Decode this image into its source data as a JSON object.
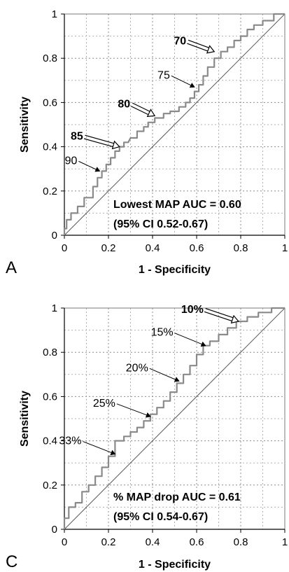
{
  "chart_data": [
    {
      "type": "line",
      "panel_label": "A",
      "xlabel": "1 - Specificity",
      "ylabel": "Sensitivity",
      "xlim": [
        0,
        1
      ],
      "ylim": [
        0,
        1
      ],
      "grid": true,
      "x_ticks": [
        "0",
        "0.2",
        "0.4",
        "0.6",
        "0.8",
        "1"
      ],
      "y_ticks": [
        "0",
        "0.2",
        "0.4",
        "0.6",
        "0.8",
        "1"
      ],
      "auc_text": [
        "Lowest MAP AUC = 0.60",
        "(95% CI 0.52-0.67)"
      ],
      "series": [
        {
          "x": [
            0,
            0,
            0.01,
            0.01,
            0.03,
            0.03,
            0.06,
            0.06,
            0.09,
            0.09,
            0.13,
            0.13,
            0.15,
            0.15,
            0.17,
            0.17,
            0.19,
            0.19,
            0.21,
            0.21,
            0.23,
            0.23,
            0.25,
            0.25,
            0.27,
            0.27,
            0.29,
            0.3,
            0.33,
            0.33,
            0.36,
            0.36,
            0.38,
            0.38,
            0.41,
            0.41,
            0.45,
            0.45,
            0.48,
            0.48,
            0.52,
            0.52,
            0.55,
            0.55,
            0.57,
            0.57,
            0.59,
            0.59,
            0.61,
            0.61,
            0.63,
            0.63,
            0.65,
            0.65,
            0.68,
            0.68,
            0.71,
            0.71,
            0.74,
            0.74,
            0.77,
            0.77,
            0.8,
            0.8,
            0.83,
            0.83,
            0.86,
            0.86,
            0.9,
            0.9,
            0.95,
            0.95,
            1.0
          ],
          "y": [
            0,
            0.03,
            0.03,
            0.07,
            0.07,
            0.1,
            0.1,
            0.13,
            0.13,
            0.17,
            0.17,
            0.22,
            0.22,
            0.26,
            0.26,
            0.29,
            0.29,
            0.32,
            0.32,
            0.35,
            0.35,
            0.38,
            0.38,
            0.4,
            0.4,
            0.42,
            0.42,
            0.44,
            0.44,
            0.47,
            0.47,
            0.49,
            0.49,
            0.51,
            0.51,
            0.53,
            0.53,
            0.55,
            0.55,
            0.56,
            0.56,
            0.58,
            0.58,
            0.6,
            0.6,
            0.62,
            0.62,
            0.65,
            0.65,
            0.68,
            0.68,
            0.72,
            0.72,
            0.76,
            0.76,
            0.8,
            0.8,
            0.83,
            0.83,
            0.85,
            0.85,
            0.88,
            0.88,
            0.9,
            0.9,
            0.93,
            0.93,
            0.95,
            0.95,
            0.97,
            0.97,
            1.0,
            1.0
          ]
        }
      ],
      "annotations": [
        {
          "text": "70",
          "x": 0.68,
          "y": 0.83,
          "bold": true
        },
        {
          "text": "75",
          "x": 0.59,
          "y": 0.67,
          "bold": false
        },
        {
          "text": "80",
          "x": 0.41,
          "y": 0.54,
          "bold": true
        },
        {
          "text": "85",
          "x": 0.25,
          "y": 0.4,
          "bold": true
        },
        {
          "text": "90",
          "x": 0.16,
          "y": 0.29,
          "bold": false
        }
      ]
    },
    {
      "type": "line",
      "panel_label": "C",
      "xlabel": "1 - Specificity",
      "ylabel": "Sensitivity",
      "xlim": [
        0,
        1
      ],
      "ylim": [
        0,
        1
      ],
      "grid": true,
      "x_ticks": [
        "0",
        "0.2",
        "0.4",
        "0.6",
        "0.8",
        "1"
      ],
      "y_ticks": [
        "0",
        "0.2",
        "0.4",
        "0.6",
        "0.8",
        "1"
      ],
      "auc_text": [
        "% MAP drop AUC = 0.61",
        "(95% CI 0.54-0.67)"
      ],
      "series": [
        {
          "x": [
            0,
            0,
            0.02,
            0.02,
            0.05,
            0.05,
            0.08,
            0.08,
            0.11,
            0.11,
            0.14,
            0.14,
            0.17,
            0.17,
            0.2,
            0.2,
            0.23,
            0.23,
            0.27,
            0.27,
            0.3,
            0.3,
            0.33,
            0.33,
            0.36,
            0.36,
            0.39,
            0.39,
            0.42,
            0.42,
            0.45,
            0.45,
            0.48,
            0.48,
            0.51,
            0.51,
            0.54,
            0.54,
            0.57,
            0.57,
            0.6,
            0.6,
            0.63,
            0.63,
            0.66,
            0.66,
            0.7,
            0.7,
            0.74,
            0.74,
            0.78,
            0.78,
            0.83,
            0.83,
            0.88,
            0.88,
            0.94,
            0.94,
            1.0
          ],
          "y": [
            0,
            0.05,
            0.05,
            0.1,
            0.1,
            0.12,
            0.12,
            0.17,
            0.17,
            0.2,
            0.2,
            0.24,
            0.24,
            0.28,
            0.28,
            0.33,
            0.33,
            0.4,
            0.4,
            0.42,
            0.42,
            0.44,
            0.44,
            0.46,
            0.46,
            0.49,
            0.49,
            0.52,
            0.52,
            0.55,
            0.55,
            0.58,
            0.58,
            0.62,
            0.62,
            0.66,
            0.66,
            0.7,
            0.7,
            0.74,
            0.74,
            0.79,
            0.79,
            0.83,
            0.83,
            0.85,
            0.85,
            0.88,
            0.88,
            0.91,
            0.91,
            0.94,
            0.94,
            0.96,
            0.96,
            0.98,
            0.98,
            1.0,
            1.0
          ]
        }
      ],
      "annotations": [
        {
          "text": "10%",
          "x": 0.79,
          "y": 0.94,
          "bold": true
        },
        {
          "text": "15%",
          "x": 0.64,
          "y": 0.83,
          "bold": false
        },
        {
          "text": "20%",
          "x": 0.52,
          "y": 0.67,
          "bold": false
        },
        {
          "text": "25%",
          "x": 0.39,
          "y": 0.51,
          "bold": false
        },
        {
          "text": "33%",
          "x": 0.23,
          "y": 0.34,
          "bold": false
        }
      ]
    }
  ]
}
